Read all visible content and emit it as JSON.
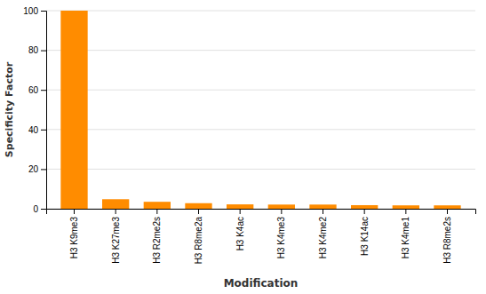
{
  "chart_data": {
    "type": "bar",
    "categories": [
      "H3 K9me3",
      "H3 K27me3",
      "H3 R2me2s",
      "H3 R8me2a",
      "H3 K4ac",
      "H3 K4me3",
      "H3 K4me2",
      "H3 K14ac",
      "H3 K4me1",
      "H3 R8me2s"
    ],
    "values": [
      100,
      4.8,
      3.5,
      2.8,
      2.2,
      2.1,
      2.1,
      1.8,
      1.7,
      1.7
    ],
    "color": "#FF8C00",
    "xlabel": "Modification",
    "ylabel": "Specificity Factor",
    "ylim": [
      0,
      100
    ],
    "yticks": [
      0,
      20,
      40,
      60,
      80,
      100
    ],
    "grid": true
  }
}
